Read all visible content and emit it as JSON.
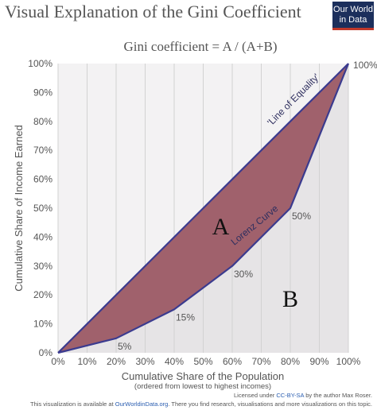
{
  "header": {
    "title": "Visual Explanation of the Gini Coefficient",
    "logo_line1": "Our World",
    "logo_line2": "in Data"
  },
  "chart_data": {
    "type": "line",
    "subtitle": "Gini coefficient = A / (A+B)",
    "xlabel": "Cumulative Share of the Population",
    "xlabel_sub": "(ordered from lowest to highest incomes)",
    "ylabel": "Cumulative Share of Income Earned",
    "xlim": [
      0,
      100
    ],
    "ylim": [
      0,
      100
    ],
    "x_ticks": [
      "0%",
      "10%",
      "20%",
      "30%",
      "40%",
      "50%",
      "60%",
      "70%",
      "80%",
      "90%",
      "100%"
    ],
    "y_ticks": [
      "0%",
      "10%",
      "20%",
      "30%",
      "40%",
      "50%",
      "60%",
      "70%",
      "80%",
      "90%",
      "100%"
    ],
    "grid": true,
    "series": [
      {
        "name": "'Line of Equality'",
        "color": "#3b3b8f",
        "x": [
          0,
          100
        ],
        "y": [
          0,
          100
        ]
      },
      {
        "name": "Lorenz Curve",
        "color": "#3b3b8f",
        "x": [
          0,
          20,
          40,
          60,
          80,
          100
        ],
        "y": [
          0,
          5,
          15,
          30,
          50,
          100
        ]
      }
    ],
    "point_labels": [
      {
        "x": 20,
        "y": 5,
        "text": "5%"
      },
      {
        "x": 40,
        "y": 15,
        "text": "15%"
      },
      {
        "x": 60,
        "y": 30,
        "text": "30%"
      },
      {
        "x": 80,
        "y": 50,
        "text": "50%"
      },
      {
        "x": 100,
        "y": 100,
        "text": "100%"
      }
    ],
    "area_labels": {
      "a": "A",
      "b": "B"
    },
    "colors": {
      "area_a": "#a0616c",
      "area_b": "#e6e4e6",
      "plot_bg": "#f3f2f3",
      "grid": "#d2d2d2",
      "line": "#3b3b8f"
    }
  },
  "footer": {
    "line1_prefix": "Licensed under ",
    "line1_link": "CC-BY-SA",
    "line1_suffix": " by the author Max Roser.",
    "line2_prefix": "This visualization is available at ",
    "line2_link": "OurWorldinData.org",
    "line2_suffix": ". There you find research, visualisations and more visualizations on this topic."
  }
}
